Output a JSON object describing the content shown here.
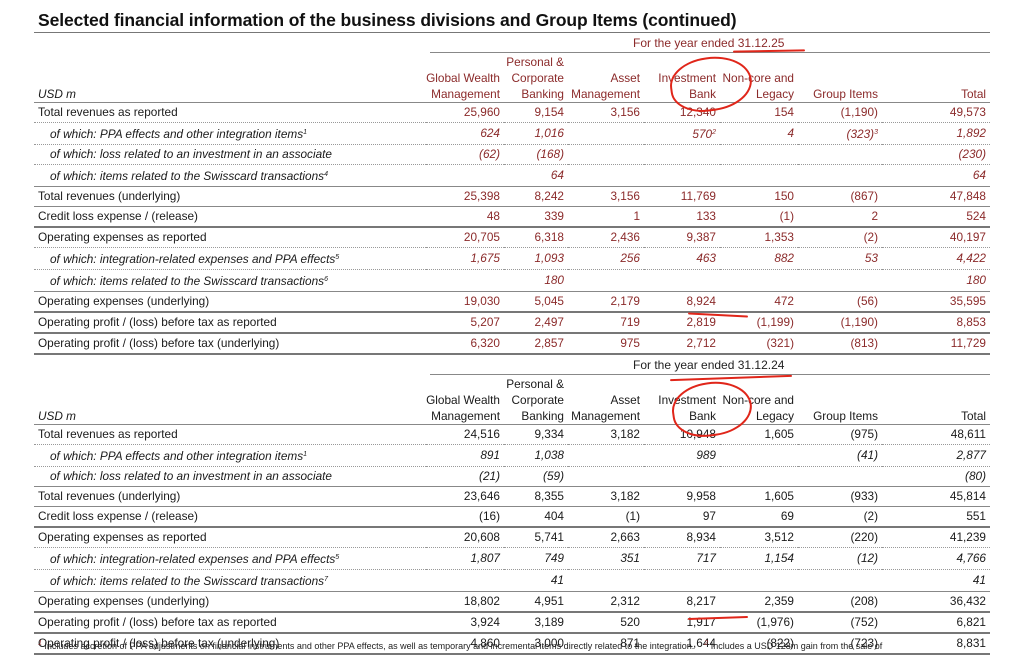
{
  "title": "Selected financial information of the business divisions and Group Items (continued)",
  "columns": {
    "unit_label": "USD m",
    "headers": [
      [
        "",
        "Global Wealth",
        "Management"
      ],
      [
        "Personal &",
        "Corporate",
        "Banking"
      ],
      [
        "",
        "Asset",
        "Management"
      ],
      [
        "",
        "Investment",
        "Bank"
      ],
      [
        "",
        "Non-core and",
        "Legacy"
      ],
      [
        "",
        "",
        "Group Items"
      ],
      [
        "",
        "",
        "Total"
      ]
    ]
  },
  "table_2025": {
    "period": "For the year ended 31.12.25",
    "rows": [
      {
        "label": "Total revenues as reported",
        "sup": "",
        "style": "main",
        "border": "dot",
        "values": [
          "25,960",
          "9,154",
          "3,156",
          "12,340",
          "154",
          "(1,190)",
          "49,573"
        ],
        "value_sups": [
          "",
          "",
          "",
          "",
          "",
          "",
          ""
        ]
      },
      {
        "label": "of which: PPA effects and other integration items",
        "sup": "1",
        "style": "sub",
        "border": "dot",
        "values": [
          "624",
          "1,016",
          "",
          "570",
          "4",
          "(323)",
          "1,892"
        ],
        "value_sups": [
          "",
          "",
          "",
          "2",
          "",
          "3",
          ""
        ]
      },
      {
        "label": "of which: loss related to an investment in an associate",
        "sup": "",
        "style": "sub",
        "border": "dot",
        "values": [
          "(62)",
          "(168)",
          "",
          "",
          "",
          "",
          "(230)"
        ],
        "value_sups": [
          "",
          "",
          "",
          "",
          "",
          "",
          ""
        ]
      },
      {
        "label": "of which: items related to the Swisscard transactions",
        "sup": "4",
        "style": "sub",
        "border": "solid",
        "values": [
          "",
          "64",
          "",
          "",
          "",
          "",
          "64"
        ],
        "value_sups": [
          "",
          "",
          "",
          "",
          "",
          "",
          ""
        ]
      },
      {
        "label": "Total revenues (underlying)",
        "sup": "",
        "style": "main",
        "border": "solid",
        "values": [
          "25,398",
          "8,242",
          "3,156",
          "11,769",
          "150",
          "(867)",
          "47,848"
        ],
        "value_sups": [
          "",
          "",
          "",
          "",
          "",
          "",
          ""
        ]
      },
      {
        "label": "Credit loss expense / (release)",
        "sup": "",
        "style": "main",
        "border": "thick",
        "values": [
          "48",
          "339",
          "1",
          "133",
          "(1)",
          "2",
          "524"
        ],
        "value_sups": [
          "",
          "",
          "",
          "",
          "",
          "",
          ""
        ]
      },
      {
        "label": "Operating expenses as reported",
        "sup": "",
        "style": "main",
        "border": "dot",
        "values": [
          "20,705",
          "6,318",
          "2,436",
          "9,387",
          "1,353",
          "(2)",
          "40,197"
        ],
        "value_sups": [
          "",
          "",
          "",
          "",
          "",
          "",
          ""
        ]
      },
      {
        "label": "of which: integration-related expenses and PPA effects",
        "sup": "5",
        "style": "sub",
        "border": "dot",
        "values": [
          "1,675",
          "1,093",
          "256",
          "463",
          "882",
          "53",
          "4,422"
        ],
        "value_sups": [
          "",
          "",
          "",
          "",
          "",
          "",
          ""
        ]
      },
      {
        "label": "of which: items related to the Swisscard transactions",
        "sup": "6",
        "style": "sub",
        "border": "solid",
        "values": [
          "",
          "180",
          "",
          "",
          "",
          "",
          "180"
        ],
        "value_sups": [
          "",
          "",
          "",
          "",
          "",
          "",
          ""
        ]
      },
      {
        "label": "Operating expenses (underlying)",
        "sup": "",
        "style": "main",
        "border": "thick",
        "values": [
          "19,030",
          "5,045",
          "2,179",
          "8,924",
          "472",
          "(56)",
          "35,595"
        ],
        "value_sups": [
          "",
          "",
          "",
          "",
          "",
          "",
          ""
        ]
      },
      {
        "label": "Operating profit / (loss) before tax as reported",
        "sup": "",
        "style": "main",
        "border": "thick",
        "values": [
          "5,207",
          "2,497",
          "719",
          "2,819",
          "(1,199)",
          "(1,190)",
          "8,853"
        ],
        "value_sups": [
          "",
          "",
          "",
          "",
          "",
          "",
          ""
        ]
      },
      {
        "label": "Operating profit / (loss) before tax (underlying)",
        "sup": "",
        "style": "main",
        "border": "thick",
        "values": [
          "6,320",
          "2,857",
          "975",
          "2,712",
          "(321)",
          "(813)",
          "11,729"
        ],
        "value_sups": [
          "",
          "",
          "",
          "",
          "",
          "",
          ""
        ]
      }
    ]
  },
  "table_2024": {
    "period": "For the year ended 31.12.24",
    "rows": [
      {
        "label": "Total revenues as reported",
        "sup": "",
        "style": "main",
        "border": "dot",
        "values": [
          "24,516",
          "9,334",
          "3,182",
          "10,948",
          "1,605",
          "(975)",
          "48,611"
        ],
        "value_sups": [
          "",
          "",
          "",
          "",
          "",
          "",
          ""
        ]
      },
      {
        "label": "of which: PPA effects and other integration items",
        "sup": "1",
        "style": "sub",
        "border": "dot",
        "values": [
          "891",
          "1,038",
          "",
          "989",
          "",
          "(41)",
          "2,877"
        ],
        "value_sups": [
          "",
          "",
          "",
          "",
          "",
          "",
          ""
        ]
      },
      {
        "label": "of which: loss related to an investment in an associate",
        "sup": "",
        "style": "sub",
        "border": "solid",
        "values": [
          "(21)",
          "(59)",
          "",
          "",
          "",
          "",
          "(80)"
        ],
        "value_sups": [
          "",
          "",
          "",
          "",
          "",
          "",
          ""
        ]
      },
      {
        "label": "Total revenues (underlying)",
        "sup": "",
        "style": "main",
        "border": "solid",
        "values": [
          "23,646",
          "8,355",
          "3,182",
          "9,958",
          "1,605",
          "(933)",
          "45,814"
        ],
        "value_sups": [
          "",
          "",
          "",
          "",
          "",
          "",
          ""
        ]
      },
      {
        "label": "Credit loss expense / (release)",
        "sup": "",
        "style": "main",
        "border": "thick",
        "values": [
          "(16)",
          "404",
          "(1)",
          "97",
          "69",
          "(2)",
          "551"
        ],
        "value_sups": [
          "",
          "",
          "",
          "",
          "",
          "",
          ""
        ]
      },
      {
        "label": "Operating expenses as reported",
        "sup": "",
        "style": "main",
        "border": "dot",
        "values": [
          "20,608",
          "5,741",
          "2,663",
          "8,934",
          "3,512",
          "(220)",
          "41,239"
        ],
        "value_sups": [
          "",
          "",
          "",
          "",
          "",
          "",
          ""
        ]
      },
      {
        "label": "of which: integration-related expenses and PPA effects",
        "sup": "5",
        "style": "sub",
        "border": "dot",
        "values": [
          "1,807",
          "749",
          "351",
          "717",
          "1,154",
          "(12)",
          "4,766"
        ],
        "value_sups": [
          "",
          "",
          "",
          "",
          "",
          "",
          ""
        ]
      },
      {
        "label": "of which: items related to the Swisscard transactions",
        "sup": "7",
        "style": "sub",
        "border": "solid",
        "values": [
          "",
          "41",
          "",
          "",
          "",
          "",
          "41"
        ],
        "value_sups": [
          "",
          "",
          "",
          "",
          "",
          "",
          ""
        ]
      },
      {
        "label": "Operating expenses (underlying)",
        "sup": "",
        "style": "main",
        "border": "thick",
        "values": [
          "18,802",
          "4,951",
          "2,312",
          "8,217",
          "2,359",
          "(208)",
          "36,432"
        ],
        "value_sups": [
          "",
          "",
          "",
          "",
          "",
          "",
          ""
        ]
      },
      {
        "label": "Operating profit / (loss) before tax as reported",
        "sup": "",
        "style": "main",
        "border": "thick",
        "values": [
          "3,924",
          "3,189",
          "520",
          "1,917",
          "(1,976)",
          "(752)",
          "6,821"
        ],
        "value_sups": [
          "",
          "",
          "",
          "",
          "",
          "",
          ""
        ]
      },
      {
        "label": "Operating profit / (loss) before tax (underlying)",
        "sup": "",
        "style": "main",
        "border": "thick",
        "values": [
          "4,860",
          "3,000",
          "871",
          "1,644",
          "(822)",
          "(723)",
          "8,831"
        ],
        "value_sups": [
          "",
          "",
          "",
          "",
          "",
          "",
          ""
        ]
      }
    ]
  },
  "footnote": {
    "part1_num": "1",
    "part1_text": "Includes accretion of PPA adjustments on financial instruments and other PPA effects, as well as temporary and incremental items directly related to the integration.",
    "part2_num": "2",
    "part2_text": "Includes a USD 128m gain from the sale of"
  },
  "colors": {
    "accent_text": "#8b2a2a",
    "annotation_red": "#e0261a",
    "rule_gray": "#888888"
  }
}
